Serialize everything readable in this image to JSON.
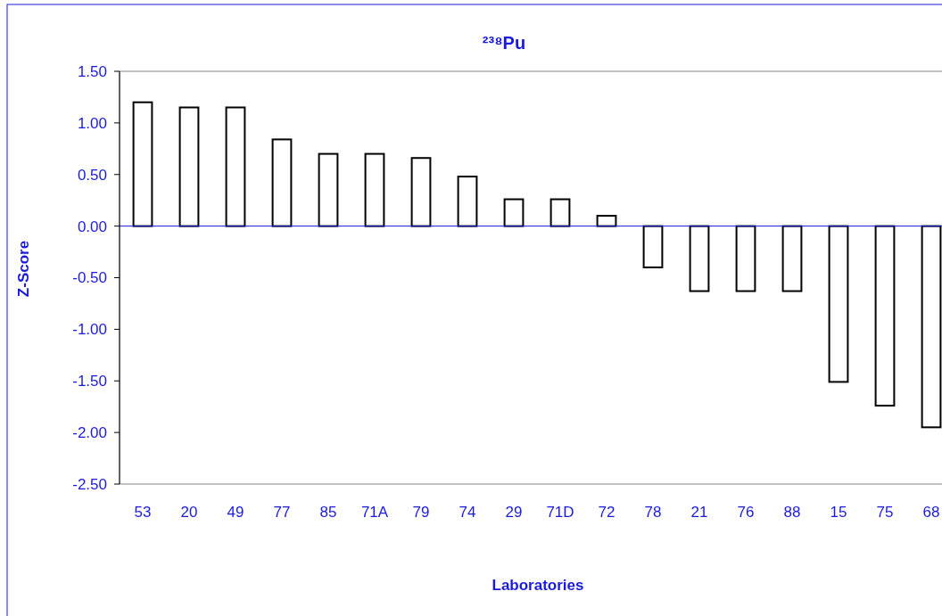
{
  "chart_data": {
    "type": "bar",
    "title": "²³⁸Pu",
    "xlabel": "Laboratories",
    "ylabel": "Z-Score",
    "categories": [
      "53",
      "20",
      "49",
      "77",
      "85",
      "71A",
      "79",
      "74",
      "29",
      "71D",
      "72",
      "78",
      "21",
      "76",
      "88",
      "15",
      "75",
      "68"
    ],
    "values": [
      1.2,
      1.15,
      1.15,
      0.84,
      0.7,
      0.7,
      0.66,
      0.48,
      0.26,
      0.26,
      0.1,
      -0.4,
      -0.63,
      -0.63,
      -0.63,
      -1.51,
      -1.74,
      -1.95
    ],
    "color": "#ffffff",
    "ylim": [
      -2.5,
      1.5
    ],
    "yticks": [
      {
        "value": 1.5,
        "label": "1.50"
      },
      {
        "value": 1,
        "label": "1.00"
      },
      {
        "value": 0.5,
        "label": "0.50"
      },
      {
        "value": 0,
        "label": "0.00"
      },
      {
        "value": -0.5,
        "label": "-0.50"
      },
      {
        "value": -1,
        "label": "-1.00"
      },
      {
        "value": -1.5,
        "label": "-1.50"
      },
      {
        "value": -2,
        "label": "-2.00"
      },
      {
        "value": -2.5,
        "label": "-2.50"
      }
    ],
    "ref_lines": [
      {
        "axis": "y",
        "value": 0,
        "color": "#1a1adc"
      }
    ],
    "grid": false
  }
}
